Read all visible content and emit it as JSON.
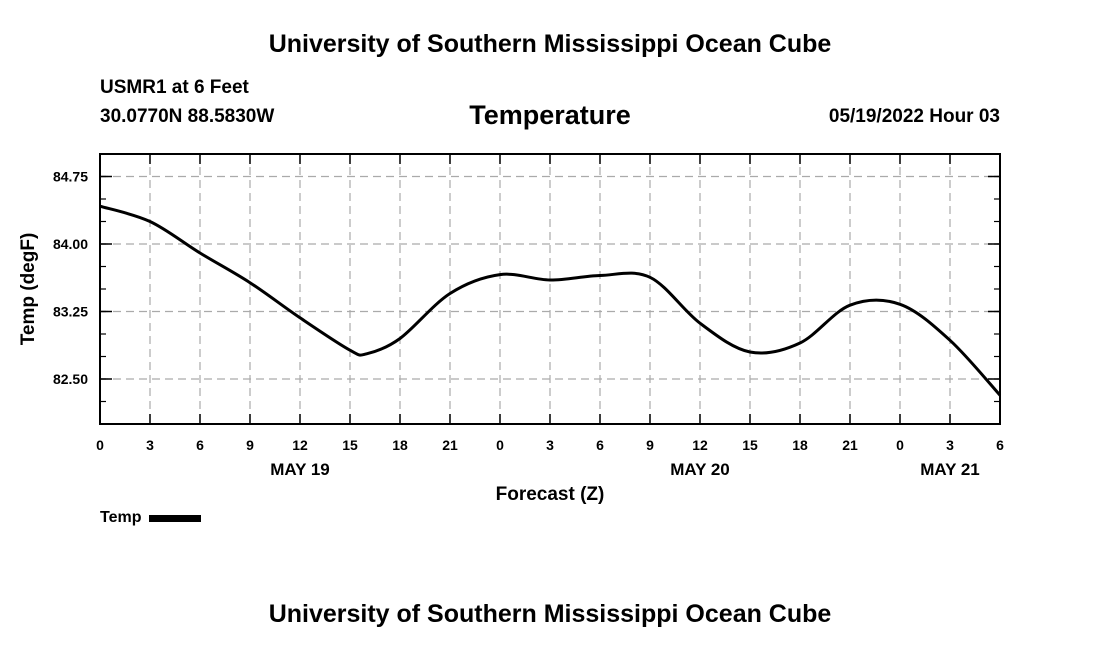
{
  "header": {
    "title": "University of Southern Mississippi Ocean Cube",
    "station_line": "USMR1 at 6 Feet",
    "coords": "30.0770N  88.5830W",
    "datetime": "05/19/2022 Hour 03",
    "footer_title": "University of Southern Mississippi Ocean Cube"
  },
  "chart_data": {
    "type": "line",
    "title": "Temperature",
    "xlabel": "Forecast (Z)",
    "ylabel": "Temp (degF)",
    "x_unit": "hours from 2022-05-19 00Z",
    "xlim": [
      0,
      54
    ],
    "ylim": [
      82.0,
      85.0
    ],
    "y_ticks": [
      "84.75",
      "84.00",
      "83.25",
      "82.50"
    ],
    "y_tick_values": [
      84.75,
      84.0,
      83.25,
      82.5
    ],
    "x_ticks": [
      "0",
      "3",
      "6",
      "9",
      "12",
      "15",
      "18",
      "21",
      "0",
      "3",
      "6",
      "9",
      "12",
      "15",
      "18",
      "21",
      "0",
      "3",
      "6"
    ],
    "date_labels": [
      {
        "text": "MAY 19",
        "hour": 12
      },
      {
        "text": "MAY 20",
        "hour": 36
      },
      {
        "text": "MAY 21",
        "hour": 51
      }
    ],
    "grid": true,
    "legend_position": "bottom-left",
    "series": [
      {
        "name": "Temp",
        "color": "#000000",
        "x": [
          0,
          3,
          6,
          9,
          12,
          15,
          16,
          18,
          21,
          24,
          27,
          30,
          33,
          36,
          39,
          42,
          45,
          48,
          51,
          54
        ],
        "y": [
          84.42,
          84.25,
          83.9,
          83.57,
          83.18,
          82.82,
          82.78,
          82.95,
          83.45,
          83.66,
          83.6,
          83.65,
          83.63,
          83.12,
          82.8,
          82.9,
          83.32,
          83.33,
          82.93,
          82.32
        ]
      }
    ]
  }
}
